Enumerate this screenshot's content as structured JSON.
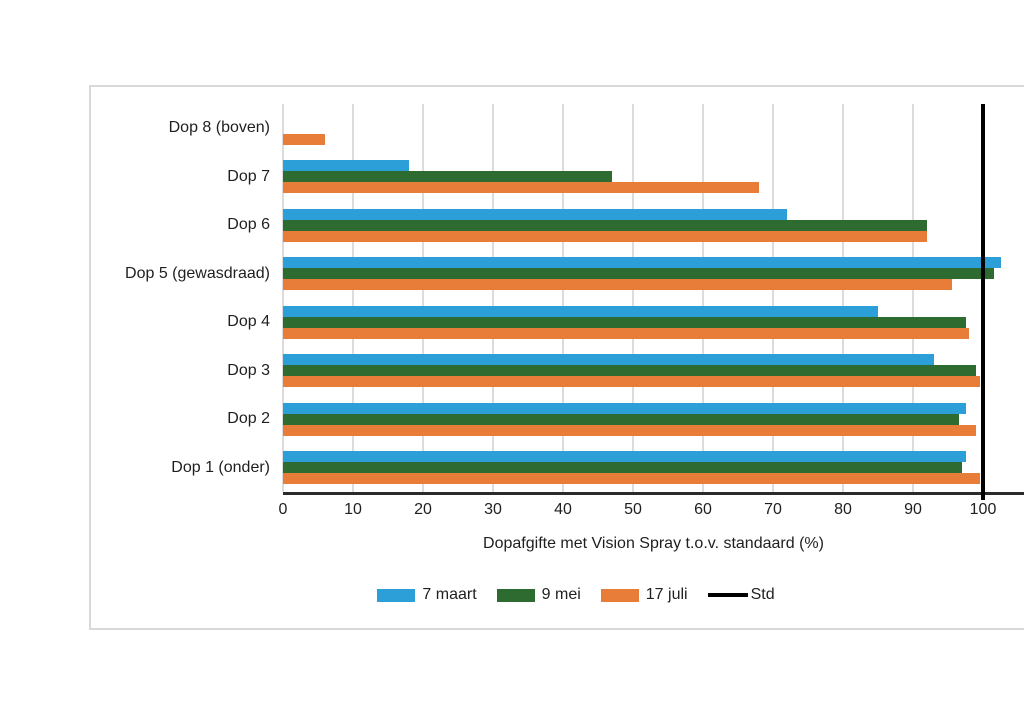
{
  "chart_data": {
    "type": "bar",
    "orientation": "horizontal",
    "grouped": true,
    "title": "",
    "xlabel": "Dopafgifte met Vision Spray t.o.v. standaard (%)",
    "x_ticks": [
      0,
      10,
      20,
      30,
      40,
      50,
      60,
      70,
      80,
      90,
      100
    ],
    "x_tick_interval": 10,
    "categories": [
      "Dop 8 (boven)",
      "Dop 7",
      "Dop 6",
      "Dop 5 (gewasdraad)",
      "Dop 4",
      "Dop 3",
      "Dop 2",
      "Dop 1 (onder)"
    ],
    "series": [
      {
        "name": "7 maart",
        "color": "#2C9FD8",
        "values": [
          0,
          18,
          72,
          102.5,
          85,
          93,
          97.5,
          97.5
        ]
      },
      {
        "name": "9 mei",
        "color": "#2D6B31",
        "values": [
          0,
          47,
          92,
          101.5,
          97.5,
          99,
          96.5,
          97
        ]
      },
      {
        "name": "17 juli",
        "color": "#E87D3A",
        "values": [
          6,
          68,
          92,
          95.5,
          98,
          99.5,
          99,
          99.5
        ]
      }
    ],
    "reference_line": {
      "label": "Std",
      "value": 100,
      "color": "#000000"
    },
    "legend": {
      "position": "bottom",
      "entries": [
        "7 maart",
        "9 mei",
        "17 juli",
        "Std"
      ]
    },
    "grid": {
      "vertical": true,
      "color": "#dcdcdc"
    },
    "axis_line_color": "#2b2b2b"
  }
}
